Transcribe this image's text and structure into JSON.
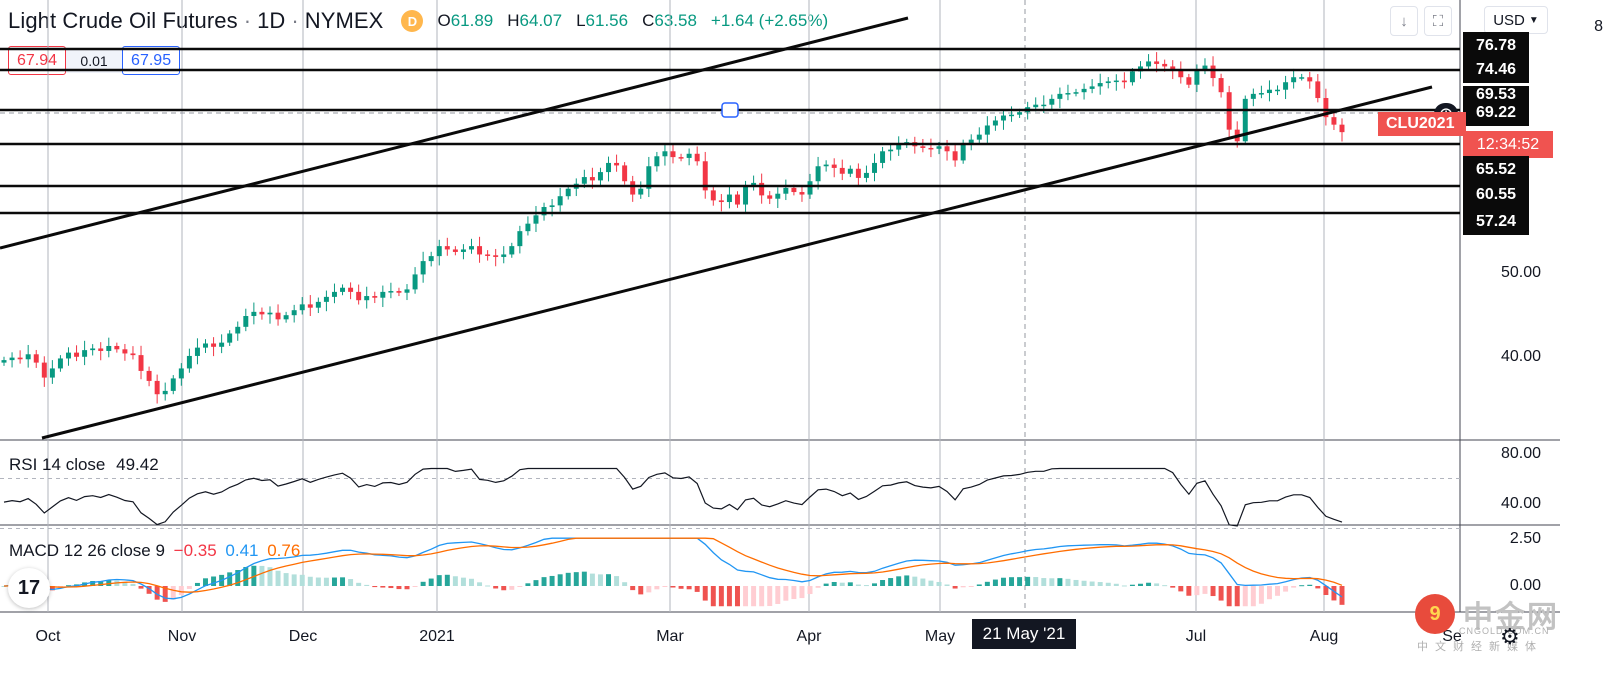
{
  "header": {
    "symbol": "Light Crude Oil Futures",
    "interval": "1D",
    "exchange": "NYMEX",
    "badge": "D",
    "open_key": "O",
    "open": "61.89",
    "high_key": "H",
    "high": "64.07",
    "low_key": "L",
    "low": "61.56",
    "close_key": "C",
    "close": "63.58",
    "change": "+1.64 (+2.65%)"
  },
  "trade": {
    "sell": "67.94",
    "spread": "0.01",
    "buy": "67.95"
  },
  "toolbar": {
    "currency": "USD",
    "down_icon": "arrow-down-icon",
    "fullscreen_icon": "fullscreen-icon"
  },
  "colors": {
    "up": "#089981",
    "down": "#f23645",
    "rsi": "#131722",
    "macd": "#2196f3",
    "signal": "#ff6d00",
    "accent": "#2962ff"
  },
  "price_axis": {
    "ticks": [
      "40.00",
      "50.00"
    ],
    "level_tags": [
      "76.78",
      "74.46",
      "65.52",
      "60.55",
      "57.24"
    ],
    "crosshair": "69.22",
    "hidden_tag": "69.53",
    "symbol_tag": "CLU2021",
    "countdown": "12:34:52",
    "top_partial": "8"
  },
  "rsi": {
    "label": "RSI 14 close",
    "value": "49.42",
    "ticks": [
      "80.00",
      "40.00"
    ]
  },
  "macd": {
    "label": "MACD 12 26 close 9",
    "hist": "−0.35",
    "macd": "0.41",
    "signal": "0.76",
    "ticks": [
      "2.50",
      "0.00"
    ]
  },
  "time_axis": {
    "labels": [
      "Oct",
      "Nov",
      "Dec",
      "2021",
      "Mar",
      "Apr",
      "May",
      "Jul",
      "Aug",
      "Se"
    ],
    "crosshair_date": "21 May '21"
  },
  "watermark": {
    "brand": "中金网",
    "domain": "CNGOLD.COM.CN",
    "tagline": "中文财经新媒体"
  },
  "chart_data": {
    "type": "candlestick",
    "title": "Light Crude Oil Futures · 1D · NYMEX",
    "ylim": [
      30,
      82
    ],
    "horizontal_levels": [
      76.78,
      74.46,
      69.53,
      65.52,
      60.55,
      57.24
    ],
    "closes": [
      39.9,
      40.2,
      40.0,
      40.6,
      39.6,
      37.8,
      38.9,
      40.1,
      40.8,
      40.3,
      41.1,
      41.3,
      41.0,
      41.6,
      41.2,
      40.7,
      40.5,
      38.6,
      37.4,
      35.8,
      36.2,
      37.7,
      38.9,
      40.4,
      41.4,
      41.9,
      41.5,
      42.0,
      43.1,
      43.9,
      45.2,
      45.7,
      45.4,
      45.6,
      44.8,
      45.3,
      45.9,
      46.6,
      46.2,
      46.9,
      47.5,
      48.1,
      48.6,
      48.1,
      47.1,
      47.6,
      47.4,
      48.1,
      48.2,
      48.0,
      48.4,
      50.2,
      51.8,
      52.4,
      53.6,
      53.2,
      52.9,
      53.2,
      53.6,
      52.6,
      52.5,
      52.3,
      52.6,
      53.6,
      55.4,
      56.3,
      57.3,
      58.3,
      58.5,
      59.6,
      60.5,
      61.1,
      61.9,
      61.5,
      62.5,
      63.6,
      63.3,
      61.4,
      59.8,
      60.5,
      63.2,
      64.4,
      65.0,
      64.3,
      64.2,
      64.7,
      63.8,
      60.3,
      59.1,
      58.9,
      59.8,
      58.6,
      60.8,
      61.2,
      59.7,
      59.3,
      59.9,
      60.6,
      60.1,
      59.8,
      61.4,
      63.2,
      63.4,
      63.0,
      62.3,
      62.9,
      61.8,
      62.4,
      63.6,
      65.0,
      65.2,
      65.8,
      66.1,
      65.6,
      65.4,
      65.3,
      65.6,
      65.0,
      63.9,
      66.0,
      66.4,
      67.0,
      68.1,
      68.7,
      69.3,
      69.4,
      69.7,
      70.3,
      70.6,
      70.6,
      71.3,
      71.9,
      72.0,
      72.1,
      72.5,
      72.8,
      73.2,
      73.4,
      73.5,
      73.3,
      74.6,
      75.2,
      75.8,
      75.5,
      75.2,
      74.8,
      73.9,
      73.0,
      74.8,
      75.3,
      73.8,
      72.1,
      67.6,
      66.2,
      71.3,
      71.9,
      72.0,
      72.4,
      72.4,
      73.3,
      73.9,
      73.9,
      73.4,
      71.4,
      69.1,
      68.2,
      67.3
    ]
  }
}
